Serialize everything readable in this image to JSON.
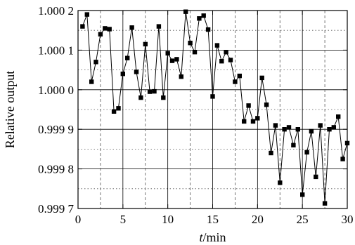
{
  "chart_data": {
    "type": "line",
    "title": "",
    "xlabel_var": "t",
    "xlabel_unit": "/min",
    "ylabel": "Relative output",
    "xlim": [
      0,
      30
    ],
    "ylim": [
      0.9997,
      1.0002
    ],
    "x_ticks": [
      0,
      5,
      10,
      15,
      20,
      25,
      30
    ],
    "x_tick_labels": [
      "0",
      "5",
      "10",
      "15",
      "20",
      "25",
      "30"
    ],
    "y_ticks": [
      0.9997,
      0.9998,
      0.9999,
      1.0,
      1.0001,
      1.0002
    ],
    "y_tick_labels": [
      "0.999 7",
      "0.999 8",
      "0.999 9",
      "1.000 0",
      "1.000 1",
      "1.000 2"
    ],
    "grid": true,
    "marker": "square",
    "series": [
      {
        "x": [
          0.5,
          1.0,
          1.5,
          2.0,
          2.5,
          3.0,
          3.5,
          4.0,
          4.5,
          5.0,
          5.5,
          6.0,
          6.5,
          7.0,
          7.5,
          8.0,
          8.5,
          9.0,
          9.5,
          10.0,
          10.5,
          11.0,
          11.5,
          12.0,
          12.5,
          13.0,
          13.5,
          14.0,
          14.5,
          15.0,
          15.5,
          16.0,
          16.5,
          17.0,
          17.5,
          18.0,
          18.5,
          19.0,
          19.5,
          20.0,
          20.5,
          21.0,
          21.5,
          22.0,
          22.5,
          23.0,
          23.5,
          24.0,
          24.5,
          25.0,
          25.5,
          26.0,
          26.5,
          27.0,
          27.5,
          28.0,
          28.5,
          29.0,
          29.5,
          30.0
        ],
        "y": [
          1.00016,
          1.00019,
          1.00002,
          1.00007,
          1.00014,
          1.000155,
          1.000153,
          0.999945,
          0.999953,
          1.00004,
          1.00008,
          1.000157,
          1.000045,
          0.99998,
          1.000115,
          0.999995,
          0.999996,
          1.00016,
          0.99998,
          1.000092,
          1.000073,
          1.000077,
          1.000033,
          1.000197,
          1.000118,
          1.000095,
          1.00018,
          1.000187,
          1.000152,
          0.999983,
          1.000112,
          1.000072,
          1.000095,
          1.000075,
          1.00002,
          1.000035,
          0.99992,
          0.99996,
          0.99992,
          0.999928,
          1.00003,
          0.999962,
          0.99984,
          0.99991,
          0.999765,
          0.9999,
          0.999905,
          0.99986,
          0.9999,
          0.999735,
          0.999842,
          0.999895,
          0.99978,
          0.99991,
          0.999713,
          0.9999,
          0.999905,
          0.999932,
          0.999825,
          0.999865
        ]
      }
    ]
  }
}
